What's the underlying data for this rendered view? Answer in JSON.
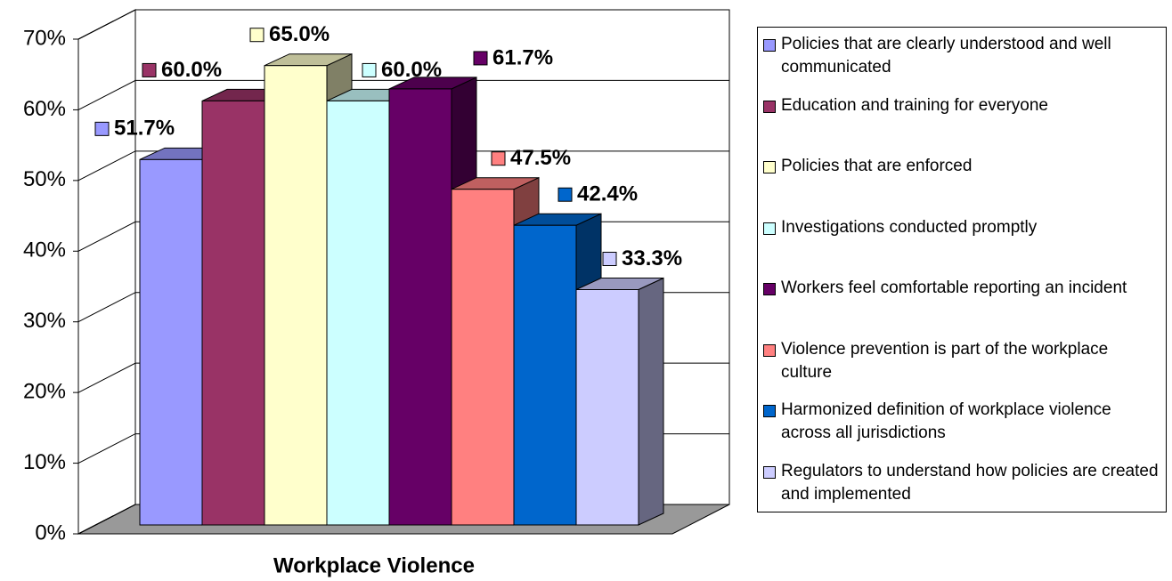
{
  "chart_data": {
    "type": "bar3d",
    "categories": [
      "Workplace Violence"
    ],
    "series": [
      {
        "name": "Policies that are clearly understood and well communicated",
        "color": "#9999ff",
        "values": [
          51.7
        ],
        "value_labels": [
          "51.7%"
        ]
      },
      {
        "name": "Education and training for everyone",
        "color": "#993366",
        "values": [
          60.0
        ],
        "value_labels": [
          "60.0%"
        ]
      },
      {
        "name": "Policies that are enforced",
        "color": "#ffffcc",
        "values": [
          65.0
        ],
        "value_labels": [
          "65.0%"
        ]
      },
      {
        "name": "Investigations conducted promptly",
        "color": "#ccffff",
        "values": [
          60.0
        ],
        "value_labels": [
          "60.0%"
        ]
      },
      {
        "name": "Workers feel comfortable reporting an incident",
        "color": "#660066",
        "values": [
          61.7
        ],
        "value_labels": [
          "61.7%"
        ]
      },
      {
        "name": "Violence prevention is part of the workplace culture",
        "color": "#ff8080",
        "values": [
          47.5
        ],
        "value_labels": [
          "47.5%"
        ]
      },
      {
        "name": "Harmonized definition of workplace violence across all jurisdictions",
        "color": "#0066cc",
        "values": [
          42.4
        ],
        "value_labels": [
          "42.4%"
        ]
      },
      {
        "name": "Regulators to understand how policies are created and implemented",
        "color": "#ccccff",
        "values": [
          33.3
        ],
        "value_labels": [
          "33.3%"
        ]
      }
    ],
    "ylim": [
      0,
      70
    ],
    "yticks": [
      {
        "value": 0,
        "label": "0%"
      },
      {
        "value": 10,
        "label": "10%"
      },
      {
        "value": 20,
        "label": "20%"
      },
      {
        "value": 30,
        "label": "30%"
      },
      {
        "value": 40,
        "label": "40%"
      },
      {
        "value": 50,
        "label": "50%"
      },
      {
        "value": 60,
        "label": "60%"
      },
      {
        "value": 70,
        "label": "70%"
      }
    ],
    "grid": true,
    "legend": "right"
  }
}
